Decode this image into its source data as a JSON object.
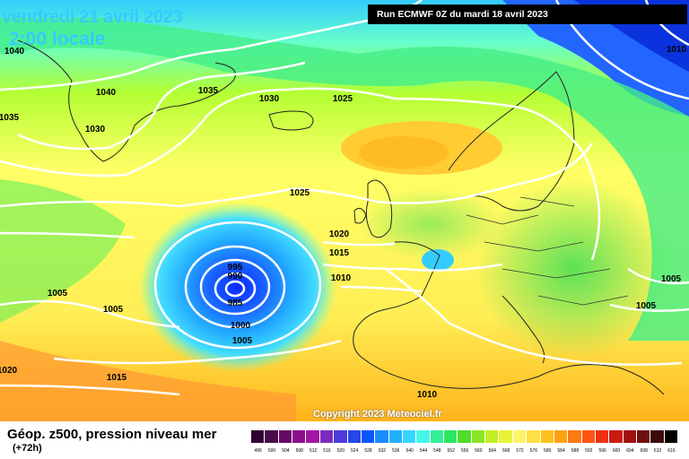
{
  "header": {
    "date": "vendredi 21 avril 2023",
    "time": "2:00 locale",
    "run": "Run ECMWF 0Z du mardi 18 avril 2023"
  },
  "copyright": "Copyright 2023 Meteociel.fr",
  "legend": {
    "title": "Géop. z500, pression niveau mer",
    "subtitle": "(+72h)",
    "scale_values": [
      "496",
      "500",
      "504",
      "508",
      "512",
      "516",
      "520",
      "524",
      "528",
      "532",
      "536",
      "540",
      "544",
      "548",
      "552",
      "556",
      "560",
      "564",
      "568",
      "572",
      "576",
      "580",
      "584",
      "588",
      "592",
      "596",
      "600",
      "604",
      "608",
      "612",
      "616"
    ],
    "scale_colors": [
      "#300030",
      "#4a0a4a",
      "#660a66",
      "#8a108a",
      "#a316a3",
      "#7d2bbf",
      "#4d3bd9",
      "#2646e6",
      "#0a57ff",
      "#1a8cff",
      "#21b2ff",
      "#36d5ff",
      "#46f5e6",
      "#33ee99",
      "#2be660",
      "#4ddd2b",
      "#8ae622",
      "#c2ee22",
      "#eaf23a",
      "#fff36a",
      "#ffe045",
      "#ffc01a",
      "#ffa010",
      "#ff7a10",
      "#ff5510",
      "#f03010",
      "#cc1a10",
      "#a01010",
      "#701010",
      "#3a0a0a",
      "#000000"
    ]
  },
  "isobars": [
    {
      "label": "1040"
    },
    {
      "label": "1040"
    },
    {
      "label": "1035"
    },
    {
      "label": "1035"
    },
    {
      "label": "1030"
    },
    {
      "label": "1030"
    },
    {
      "label": "1025"
    },
    {
      "label": "1025"
    },
    {
      "label": "1020"
    },
    {
      "label": "1015"
    },
    {
      "label": "1010"
    },
    {
      "label": "995"
    },
    {
      "label": "990"
    },
    {
      "label": "985"
    },
    {
      "label": "1000"
    },
    {
      "label": "1005"
    },
    {
      "label": "1005"
    },
    {
      "label": "1005"
    },
    {
      "label": "1020"
    },
    {
      "label": "1015"
    },
    {
      "label": "1010"
    },
    {
      "label": "1005"
    },
    {
      "label": "1005"
    },
    {
      "label": "1010"
    }
  ]
}
